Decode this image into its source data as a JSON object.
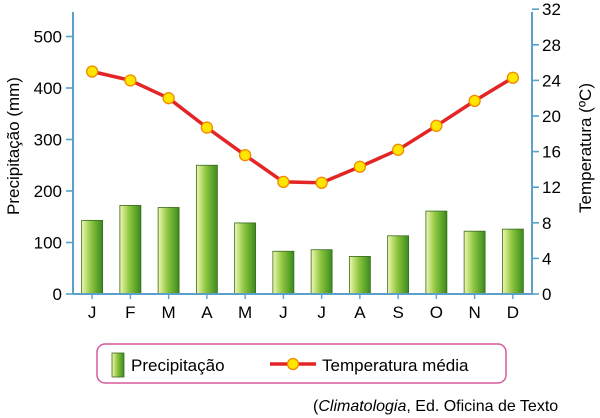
{
  "chart_data": {
    "type": "climograph",
    "categories": [
      "J",
      "F",
      "M",
      "A",
      "M",
      "J",
      "J",
      "A",
      "S",
      "O",
      "N",
      "D"
    ],
    "series": [
      {
        "name": "Precipitação",
        "type": "bar",
        "axis": "left",
        "values": [
          143,
          172,
          168,
          250,
          138,
          83,
          86,
          73,
          113,
          161,
          122,
          126
        ]
      },
      {
        "name": "Temperatura média",
        "type": "line",
        "axis": "right",
        "values": [
          25,
          24,
          22,
          18.7,
          15.6,
          12.6,
          12.5,
          14.3,
          16.2,
          18.9,
          21.7,
          24.3
        ]
      }
    ],
    "ylabel": "Precipitação (mm)",
    "y2label": "Temperatura (ºC)",
    "ylim": [
      0,
      560
    ],
    "y2lim": [
      0,
      32
    ],
    "yticks": [
      "0",
      "100",
      "200",
      "300",
      "400",
      "500"
    ],
    "y2ticks": [
      "0",
      "4",
      "8",
      "12",
      "16",
      "20",
      "24",
      "28",
      "32"
    ],
    "legend_position": "bottom",
    "grid": false,
    "colors": {
      "bar_light": "#f0f7b0",
      "bar_mid": "#8ec63f",
      "bar_dark": "#3a8a1e",
      "line": "#e32526",
      "marker": "#ffe600",
      "marker_edge": "#f08a00",
      "axis": "#5aa0c8",
      "legend_border": "#d65a9c"
    }
  },
  "source": {
    "prefix": "(",
    "italic": "Climatologia",
    "rest": ", Ed. Oficina de Texto"
  }
}
